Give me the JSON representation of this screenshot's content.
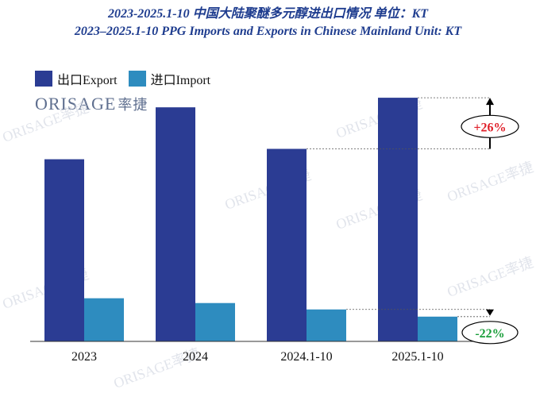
{
  "title_cn": "2023-2025.1-10 中国大陆聚醚多元醇进出口情况  单位：KT",
  "title_en": "2023–2025.1-10 PPG Imports and Exports in Chinese Mainland  Unit: KT",
  "logo": {
    "latin": "ORISAGE",
    "cn": "率捷"
  },
  "watermark": "ORISAGE率捷",
  "colors": {
    "export": "#2b3c93",
    "import": "#2e8cbf",
    "up": "#e0202a",
    "down": "#1a9e3a"
  },
  "chart_data": {
    "type": "bar",
    "title": "2023–2025.1-10 PPG Imports and Exports in Chinese Mainland  Unit: KT",
    "categories": [
      "2023",
      "2024",
      "2024.1-10",
      "2025.1-10"
    ],
    "series": [
      {
        "name": "出口Export",
        "values": [
          228,
          293,
          241,
          305
        ]
      },
      {
        "name": "进口Import",
        "values": [
          54,
          48,
          40,
          31
        ]
      }
    ],
    "ylim": [
      0,
      320
    ],
    "annotations": [
      {
        "label": "+26%",
        "series": "出口Export",
        "from": "2024.1-10",
        "to": "2025.1-10"
      },
      {
        "label": "-22%",
        "series": "进口Import",
        "from": "2024.1-10",
        "to": "2025.1-10"
      }
    ]
  }
}
